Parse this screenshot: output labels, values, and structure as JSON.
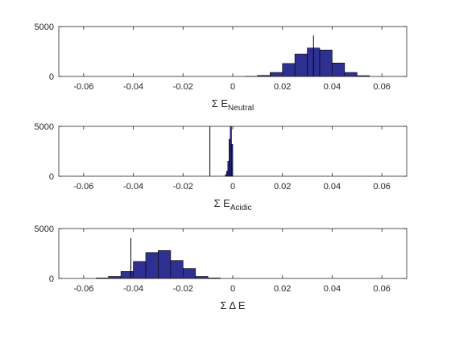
{
  "chart_data": [
    {
      "type": "bar",
      "xlabel": "Σ E",
      "xlabel_subscript": "Neutral",
      "xlim": [
        -0.07,
        0.07
      ],
      "ylim": [
        0,
        5000
      ],
      "xticks": [
        "-0.06",
        "-0.04",
        "-0.02",
        "0",
        "0.02",
        "0.04",
        "0.06"
      ],
      "yticks": [
        "0",
        "5000"
      ],
      "bin_width": 0.005,
      "bins": [
        {
          "x": 0.0075,
          "count": 20
        },
        {
          "x": 0.0125,
          "count": 100
        },
        {
          "x": 0.0175,
          "count": 400
        },
        {
          "x": 0.0225,
          "count": 1300
        },
        {
          "x": 0.0275,
          "count": 2250
        },
        {
          "x": 0.0325,
          "count": 2850
        },
        {
          "x": 0.0375,
          "count": 2650
        },
        {
          "x": 0.0425,
          "count": 1350
        },
        {
          "x": 0.0475,
          "count": 400
        },
        {
          "x": 0.0525,
          "count": 80
        }
      ],
      "reference_line": {
        "x": 0.0325,
        "value": 4100
      },
      "bar_color": "#2e3192",
      "grid": false
    },
    {
      "type": "bar",
      "xlabel": "Σ E",
      "xlabel_subscript": "Acidic",
      "xlim": [
        -0.07,
        0.07
      ],
      "ylim": [
        0,
        5000
      ],
      "xticks": [
        "-0.06",
        "-0.04",
        "-0.02",
        "0",
        "0.02",
        "0.04",
        "0.06"
      ],
      "yticks": [
        "0",
        "5000"
      ],
      "bin_width": 0.0005,
      "bins": [
        {
          "x": -0.00275,
          "count": 150
        },
        {
          "x": -0.00225,
          "count": 500
        },
        {
          "x": -0.00175,
          "count": 1500
        },
        {
          "x": -0.00125,
          "count": 3700
        },
        {
          "x": -0.00075,
          "count": 5000
        },
        {
          "x": -0.00025,
          "count": 3200
        }
      ],
      "reference_line": {
        "x": -0.0092,
        "value": 5000
      },
      "bar_color": "#2e3192",
      "grid": false
    },
    {
      "type": "bar",
      "xlabel": "Σ Δ E",
      "xlabel_subscript": "",
      "xlim": [
        -0.07,
        0.07
      ],
      "ylim": [
        0,
        5000
      ],
      "xticks": [
        "-0.06",
        "-0.04",
        "-0.02",
        "0",
        "0.02",
        "0.04",
        "0.06"
      ],
      "yticks": [
        "0",
        "5000"
      ],
      "bin_width": 0.005,
      "bins": [
        {
          "x": -0.0525,
          "count": 50
        },
        {
          "x": -0.0475,
          "count": 200
        },
        {
          "x": -0.0425,
          "count": 700
        },
        {
          "x": -0.0375,
          "count": 1700
        },
        {
          "x": -0.0325,
          "count": 2600
        },
        {
          "x": -0.0275,
          "count": 2800
        },
        {
          "x": -0.0225,
          "count": 1800
        },
        {
          "x": -0.0175,
          "count": 1000
        },
        {
          "x": -0.0125,
          "count": 200
        },
        {
          "x": -0.0075,
          "count": 50
        }
      ],
      "reference_line": {
        "x": -0.041,
        "value": 4050
      },
      "bar_color": "#2e3192",
      "grid": false
    }
  ]
}
